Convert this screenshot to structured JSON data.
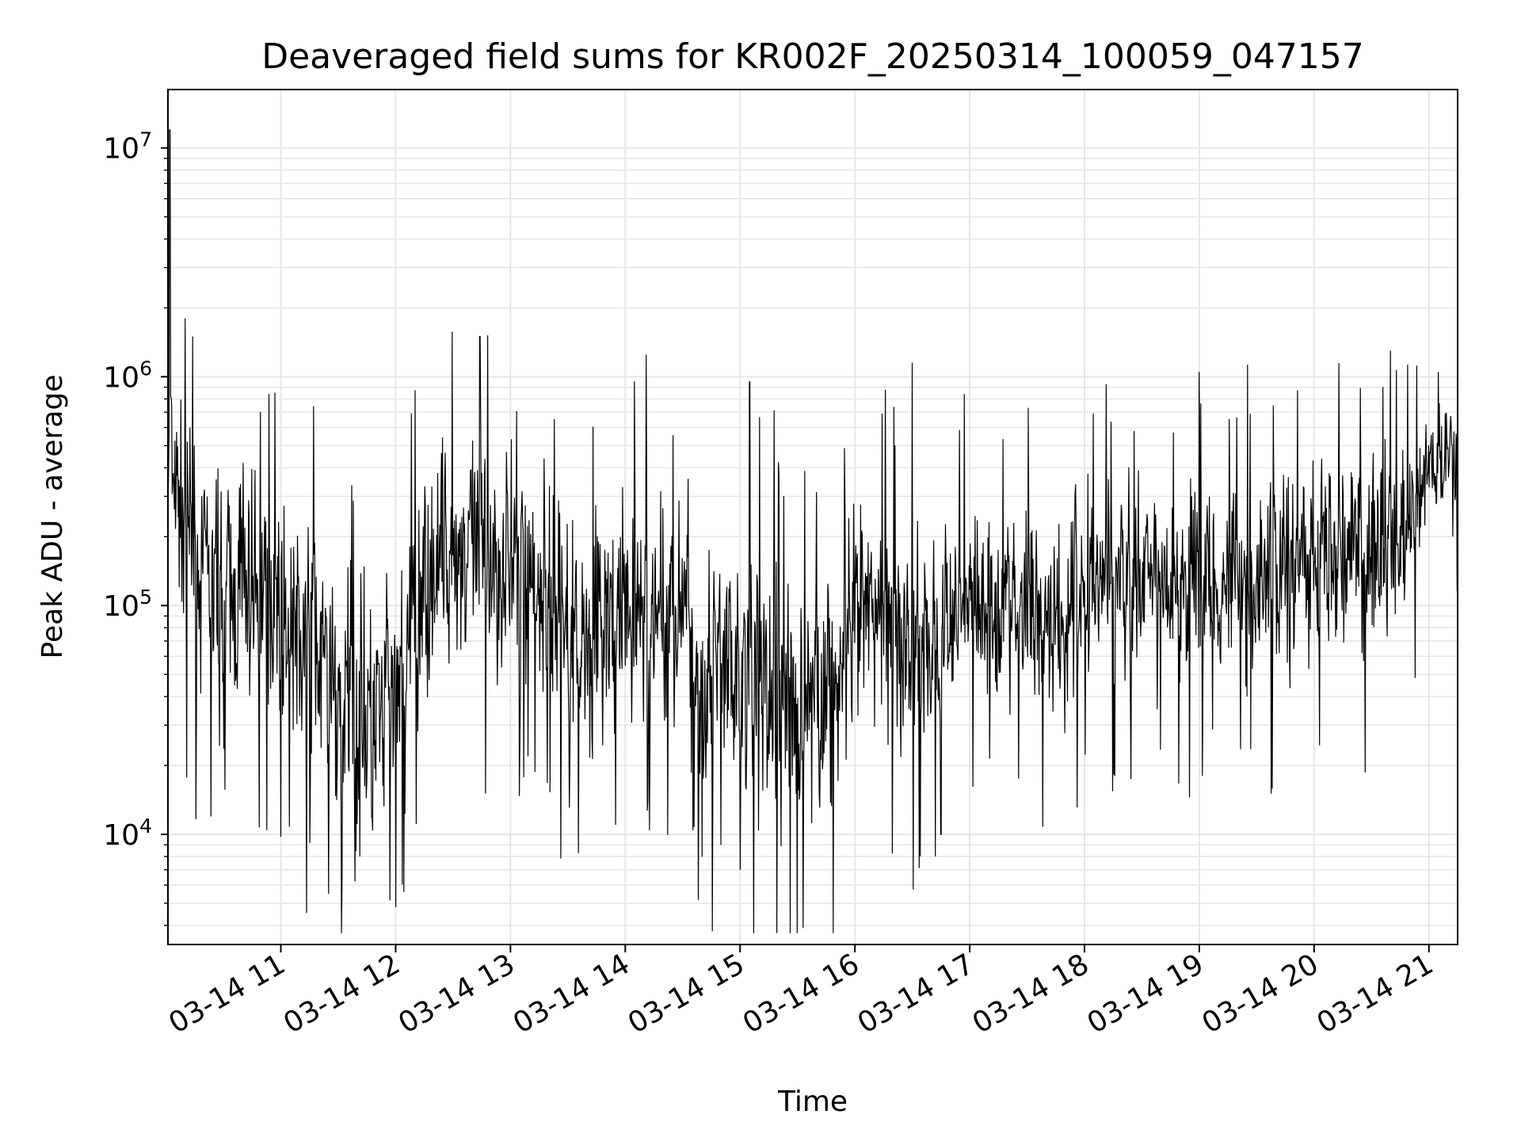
{
  "chart_data": {
    "type": "line",
    "title": "Deaveraged field sums for KR002F_20250314_100059_047157",
    "xlabel": "Time",
    "ylabel": "Peak ADU - average",
    "yscale": "log",
    "grid": true,
    "line_color": "#000000",
    "grid_color": "#e6e6e6",
    "xlim": [
      "2025-03-14 10:01",
      "2025-03-14 21:15"
    ],
    "ylim": [
      3300,
      18000000
    ],
    "x_ticks": [
      "03-14 11",
      "03-14 12",
      "03-14 13",
      "03-14 14",
      "03-14 15",
      "03-14 16",
      "03-14 17",
      "03-14 18",
      "03-14 19",
      "03-14 20",
      "03-14 21"
    ],
    "y_ticks": [
      {
        "base": "10",
        "exp": "4",
        "value": 10000
      },
      {
        "base": "10",
        "exp": "5",
        "value": 100000
      },
      {
        "base": "10",
        "exp": "6",
        "value": 1000000
      },
      {
        "base": "10",
        "exp": "7",
        "value": 10000000
      }
    ],
    "series": [
      {
        "x": [
          "2025-03-14 10:01",
          "2025-03-14 10:05",
          "2025-03-14 10:10",
          "2025-03-14 10:15",
          "2025-03-14 10:20",
          "2025-03-14 10:25",
          "2025-03-14 10:30",
          "2025-03-14 10:35",
          "2025-03-14 10:40",
          "2025-03-14 10:45",
          "2025-03-14 10:50",
          "2025-03-14 10:55",
          "2025-03-14 11:00",
          "2025-03-14 11:10",
          "2025-03-14 11:20",
          "2025-03-14 11:30",
          "2025-03-14 11:40",
          "2025-03-14 11:50",
          "2025-03-14 12:00",
          "2025-03-14 12:10",
          "2025-03-14 12:20",
          "2025-03-14 12:30",
          "2025-03-14 12:40",
          "2025-03-14 12:50",
          "2025-03-14 13:00",
          "2025-03-14 13:10",
          "2025-03-14 13:20",
          "2025-03-14 13:30",
          "2025-03-14 13:40",
          "2025-03-14 13:50",
          "2025-03-14 14:00",
          "2025-03-14 14:10",
          "2025-03-14 14:20",
          "2025-03-14 14:30",
          "2025-03-14 14:40",
          "2025-03-14 14:50",
          "2025-03-14 15:00",
          "2025-03-14 15:10",
          "2025-03-14 15:20",
          "2025-03-14 15:30",
          "2025-03-14 15:40",
          "2025-03-14 15:50",
          "2025-03-14 16:00",
          "2025-03-14 16:10",
          "2025-03-14 16:20",
          "2025-03-14 16:30",
          "2025-03-14 16:40",
          "2025-03-14 16:50",
          "2025-03-14 17:00",
          "2025-03-14 17:10",
          "2025-03-14 17:20",
          "2025-03-14 17:30",
          "2025-03-14 17:40",
          "2025-03-14 17:50",
          "2025-03-14 18:00",
          "2025-03-14 18:10",
          "2025-03-14 18:20",
          "2025-03-14 18:30",
          "2025-03-14 18:40",
          "2025-03-14 18:50",
          "2025-03-14 19:00",
          "2025-03-14 19:10",
          "2025-03-14 19:20",
          "2025-03-14 19:30",
          "2025-03-14 19:40",
          "2025-03-14 19:50",
          "2025-03-14 20:00",
          "2025-03-14 20:10",
          "2025-03-14 20:20",
          "2025-03-14 20:30",
          "2025-03-14 20:40",
          "2025-03-14 20:50",
          "2025-03-14 21:00",
          "2025-03-14 21:05",
          "2025-03-14 21:10",
          "2025-03-14 21:15"
        ],
        "y_center": [
          350000,
          300000,
          220000,
          150000,
          120000,
          110000,
          110000,
          100000,
          130000,
          120000,
          110000,
          100000,
          90000,
          80000,
          60000,
          40000,
          30000,
          30000,
          40000,
          70000,
          150000,
          180000,
          170000,
          160000,
          150000,
          140000,
          110000,
          80000,
          70000,
          80000,
          90000,
          100000,
          95000,
          90000,
          60000,
          50000,
          50000,
          45000,
          40000,
          35000,
          40000,
          50000,
          80000,
          90000,
          80000,
          70000,
          60000,
          90000,
          110000,
          110000,
          100000,
          100000,
          95000,
          90000,
          130000,
          140000,
          130000,
          120000,
          110000,
          120000,
          130000,
          140000,
          130000,
          130000,
          140000,
          150000,
          160000,
          170000,
          170000,
          170000,
          200000,
          200000,
          400000,
          420000,
          430000,
          440000
        ],
        "y_spread": [
          5,
          4,
          5,
          5,
          5,
          5,
          5,
          5,
          5,
          5,
          5,
          5,
          5,
          6,
          6,
          6,
          6,
          6,
          6,
          5,
          5,
          5,
          5,
          5,
          5,
          5,
          5,
          5,
          5,
          5,
          5,
          5,
          5,
          5,
          6,
          6,
          6,
          6,
          6,
          6,
          6,
          6,
          5,
          5,
          5,
          5,
          5,
          4,
          4,
          4,
          4,
          4,
          4,
          4,
          4,
          4,
          4,
          4,
          4,
          4,
          4,
          4,
          4,
          4,
          4,
          4,
          4,
          4,
          4,
          4,
          4,
          4,
          2.5,
          2.5,
          2.5,
          2.5
        ],
        "peaks": [
          {
            "x": "2025-03-14 10:02",
            "y": 12000000
          },
          {
            "x": "2025-03-14 10:10",
            "y": 1800000
          },
          {
            "x": "2025-03-14 11:32",
            "y": 6500
          },
          {
            "x": "2025-03-14 12:00",
            "y": 4800
          },
          {
            "x": "2025-03-14 12:44",
            "y": 1500000
          },
          {
            "x": "2025-03-14 13:55",
            "y": 11000
          },
          {
            "x": "2025-03-14 14:11",
            "y": 1250000
          },
          {
            "x": "2025-03-14 14:50",
            "y": 9000
          },
          {
            "x": "2025-03-14 15:00",
            "y": 7000
          },
          {
            "x": "2025-03-14 15:05",
            "y": 950000
          },
          {
            "x": "2025-03-14 16:30",
            "y": 1150000
          },
          {
            "x": "2025-03-14 16:45",
            "y": 10000
          },
          {
            "x": "2025-03-14 19:00",
            "y": 1050000
          },
          {
            "x": "2025-03-14 20:40",
            "y": 1300000
          },
          {
            "x": "2025-03-14 21:05",
            "y": 1050000
          }
        ]
      }
    ]
  }
}
